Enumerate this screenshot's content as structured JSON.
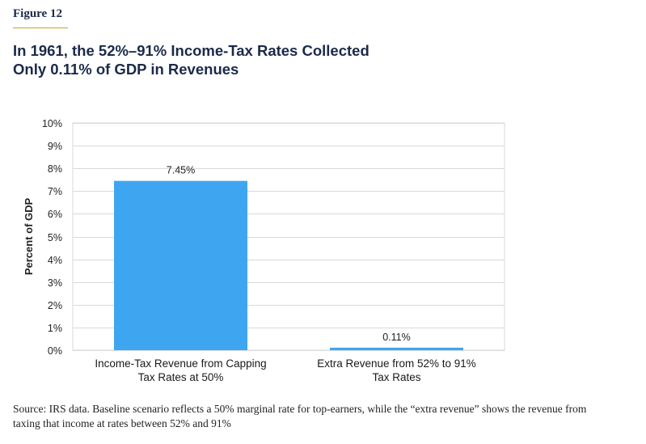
{
  "figure_label": "Figure 12",
  "title_lines": [
    "In 1961, the 52%–91% Income-Tax Rates Collected",
    "Only 0.11% of GDP in Revenues"
  ],
  "source_note": "Source: IRS data. Baseline scenario reflects a 50% marginal rate for top-earners, while the “extra revenue” shows the revenue from taxing that income at rates between 52% and 91%",
  "colors": {
    "bar": "#3ea6f0",
    "title": "#1b2a4a",
    "accent_rule": "#c9a227",
    "grid": "#d9d9d9"
  },
  "chart_data": {
    "type": "bar",
    "ylabel": "Percent of GDP",
    "xlabel": "",
    "ylim": [
      0,
      10
    ],
    "yticks": [
      "0%",
      "1%",
      "2%",
      "3%",
      "4%",
      "5%",
      "6%",
      "7%",
      "8%",
      "9%",
      "10%"
    ],
    "grid": true,
    "categories": [
      [
        "Income-Tax Revenue from Capping",
        "Tax Rates at 50%"
      ],
      [
        "Extra Revenue from 52% to 91%",
        "Tax Rates"
      ]
    ],
    "values": [
      7.45,
      0.11
    ],
    "data_labels": [
      "7.45%",
      "0.11%"
    ]
  }
}
